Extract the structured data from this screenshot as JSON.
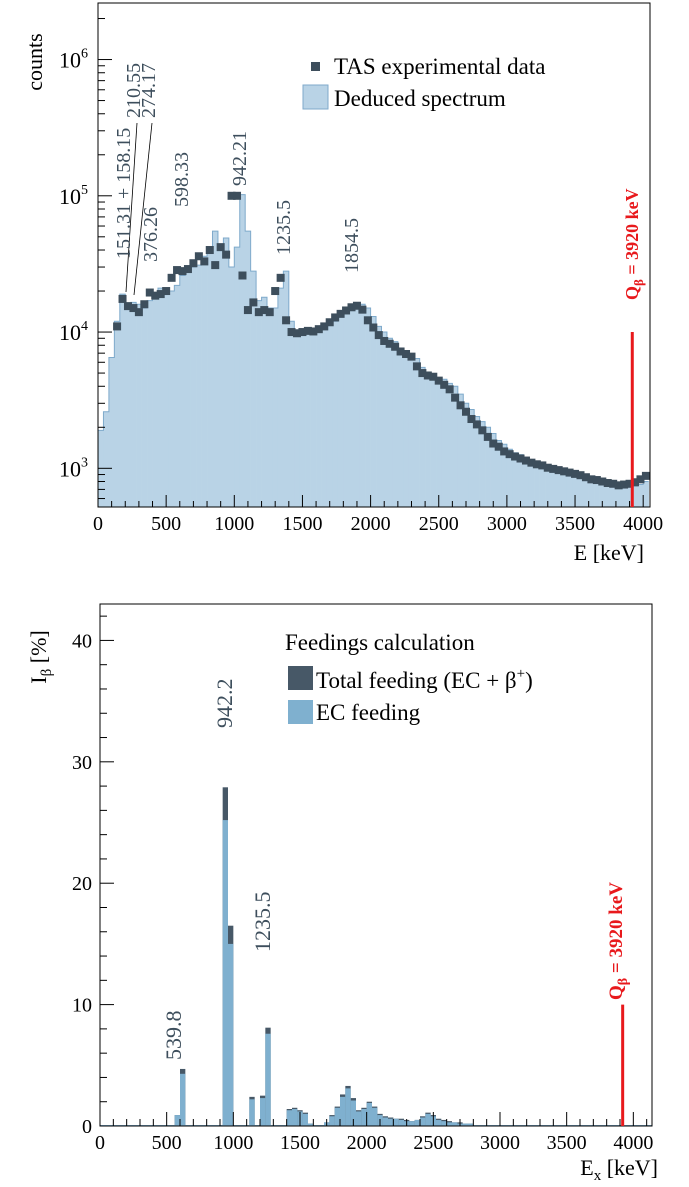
{
  "colors": {
    "deduced_fill": "#b9d3e6",
    "deduced_edge": "#7faacb",
    "tas_marker": "#3d4e5c",
    "total_feeding": "#475867",
    "ec_feeding": "#7fb0cf",
    "q_beta_line": "#e8191c",
    "annotation_text": "#3d4e5c"
  },
  "chart_data": [
    {
      "type": "area",
      "panel": "top",
      "ylabel": "counts",
      "xlabel": "E [keV]",
      "y_scale": "log",
      "xlim": [
        0,
        4050
      ],
      "ylim": [
        520,
        2600000
      ],
      "x_ticks": [
        0,
        500,
        1000,
        1500,
        2000,
        2500,
        3000,
        3500,
        4000
      ],
      "x_tick_labels": [
        "0",
        "500",
        "1000",
        "1500",
        "2000",
        "2500",
        "3000",
        "3500",
        "4000"
      ],
      "y_ticks": [
        1000,
        10000,
        100000,
        1000000
      ],
      "y_tick_labels": [
        {
          "base": "10",
          "exp": "3"
        },
        {
          "base": "10",
          "exp": "4"
        },
        {
          "base": "10",
          "exp": "5"
        },
        {
          "base": "10",
          "exp": "6"
        }
      ],
      "bin_width": 40,
      "legend": {
        "placement": "top-right",
        "entries": [
          {
            "label": "TAS experimental data",
            "style": "marker"
          },
          {
            "label": "Deduced spectrum",
            "style": "fill"
          }
        ]
      },
      "series": [
        {
          "name": "Deduced spectrum",
          "x": [
            0,
            40,
            80,
            120,
            160,
            200,
            240,
            280,
            320,
            360,
            400,
            440,
            480,
            520,
            560,
            600,
            640,
            680,
            720,
            760,
            800,
            840,
            880,
            920,
            960,
            1000,
            1040,
            1080,
            1120,
            1160,
            1200,
            1240,
            1280,
            1320,
            1360,
            1400,
            1440,
            1480,
            1520,
            1560,
            1600,
            1640,
            1680,
            1720,
            1760,
            1800,
            1840,
            1880,
            1920,
            1960,
            2000,
            2040,
            2080,
            2120,
            2160,
            2200,
            2240,
            2280,
            2320,
            2360,
            2400,
            2440,
            2480,
            2520,
            2560,
            2600,
            2640,
            2680,
            2720,
            2760,
            2800,
            2840,
            2880,
            2920,
            2960,
            3000,
            3040,
            3080,
            3120,
            3160,
            3200,
            3240,
            3280,
            3320,
            3360,
            3400,
            3440,
            3480,
            3520,
            3560,
            3600,
            3640,
            3680,
            3720,
            3760,
            3800,
            3840,
            3880,
            3920,
            3960,
            4000
          ],
          "values": [
            1900,
            2600,
            6500,
            12000,
            19000,
            15000,
            16500,
            16000,
            15000,
            17000,
            19000,
            21000,
            20000,
            20000,
            22000,
            26000,
            30000,
            30000,
            31000,
            36000,
            40000,
            55000,
            44000,
            49000,
            30000,
            42000,
            102000,
            55000,
            28000,
            17000,
            18000,
            15000,
            15000,
            21000,
            28000,
            12000,
            10000,
            9900,
            10500,
            10500,
            10600,
            11000,
            11500,
            12000,
            13000,
            14000,
            15000,
            15500,
            16000,
            15000,
            13000,
            11000,
            10000,
            9000,
            8500,
            7500,
            7000,
            6800,
            6400,
            5500,
            4900,
            4800,
            4600,
            4500,
            4200,
            4000,
            3500,
            3000,
            2700,
            2400,
            2200,
            2000,
            1800,
            1600,
            1500,
            1380,
            1300,
            1260,
            1200,
            1160,
            1120,
            1080,
            1060,
            1030,
            1000,
            990,
            960,
            940,
            920,
            900,
            870,
            850,
            830,
            800,
            790,
            770,
            760,
            750,
            740,
            760,
            800
          ]
        },
        {
          "name": "TAS experimental data",
          "x": [
            140,
            180,
            220,
            260,
            300,
            340,
            380,
            420,
            460,
            500,
            540,
            580,
            620,
            660,
            700,
            740,
            780,
            820,
            860,
            900,
            940,
            980,
            1020,
            1060,
            1100,
            1140,
            1180,
            1220,
            1260,
            1300,
            1340,
            1380,
            1420,
            1460,
            1500,
            1540,
            1580,
            1620,
            1660,
            1700,
            1740,
            1780,
            1820,
            1860,
            1900,
            1940,
            1980,
            2020,
            2060,
            2100,
            2140,
            2180,
            2220,
            2260,
            2300,
            2340,
            2380,
            2420,
            2460,
            2500,
            2540,
            2580,
            2620,
            2660,
            2700,
            2740,
            2780,
            2820,
            2860,
            2900,
            2940,
            2980,
            3020,
            3060,
            3100,
            3140,
            3180,
            3220,
            3260,
            3300,
            3340,
            3380,
            3420,
            3460,
            3500,
            3540,
            3580,
            3620,
            3660,
            3700,
            3740,
            3780,
            3820,
            3860,
            3900,
            3940,
            3980,
            4020
          ],
          "values": [
            11000,
            17500,
            15500,
            15000,
            14000,
            16000,
            19500,
            18500,
            19000,
            20000,
            25000,
            28500,
            28000,
            29000,
            32000,
            36000,
            33000,
            40000,
            31000,
            42000,
            37000,
            100000,
            100000,
            26000,
            14500,
            16500,
            14000,
            14500,
            14000,
            20000,
            25000,
            12200,
            10000,
            9800,
            10000,
            10200,
            10100,
            10500,
            11000,
            11800,
            12800,
            13600,
            14400,
            15200,
            15600,
            14600,
            12200,
            10800,
            9500,
            8600,
            8200,
            7800,
            7200,
            6900,
            6600,
            5600,
            5000,
            4800,
            4700,
            4400,
            4100,
            3800,
            3300,
            2900,
            2600,
            2300,
            2100,
            1900,
            1700,
            1520,
            1440,
            1330,
            1270,
            1220,
            1180,
            1140,
            1100,
            1070,
            1050,
            1010,
            990,
            970,
            950,
            930,
            910,
            890,
            860,
            830,
            820,
            800,
            780,
            770,
            750,
            760,
            770,
            790,
            830,
            880
          ]
        }
      ],
      "annotations": [
        {
          "text": "151.31 + 158.15",
          "x": 155
        },
        {
          "text": "210.55",
          "x": 210
        },
        {
          "text": "274.17",
          "x": 274
        },
        {
          "text": "376.26",
          "x": 376
        },
        {
          "text": "598.33",
          "x": 598
        },
        {
          "text": "942.21",
          "x": 942
        },
        {
          "text": "1235.5",
          "x": 1235
        },
        {
          "text": "1854.5",
          "x": 1854
        }
      ],
      "q_beta": {
        "value": 3920,
        "label_main": "Q",
        "label_sub": "β",
        "label_rest": " = 3920 keV",
        "line_top_value": 10000
      }
    },
    {
      "type": "bar",
      "panel": "bottom",
      "title": "Feedings calculation",
      "ylabel_main": "I",
      "ylabel_sub": "β",
      "ylabel_rest": " [%]",
      "xlabel_main": "E",
      "xlabel_sub": "x",
      "xlabel_rest": " [keV]",
      "xlim": [
        0,
        4140
      ],
      "ylim": [
        0,
        43
      ],
      "x_ticks": [
        0,
        500,
        1000,
        1500,
        2000,
        2500,
        3000,
        3500,
        4000
      ],
      "x_tick_labels": [
        "0",
        "500",
        "1000",
        "1500",
        "2000",
        "2500",
        "3000",
        "3500",
        "4000"
      ],
      "y_ticks": [
        0,
        10,
        20,
        30,
        40
      ],
      "y_tick_labels": [
        "0",
        "10",
        "20",
        "30",
        "40"
      ],
      "bin_width": 40,
      "legend": {
        "placement": "top-right",
        "entries": [
          {
            "label_main": "Total feeding (EC + β",
            "label_sup": "+",
            "label_end": ")"
          },
          {
            "label_main": "EC feeding",
            "label_sup": "",
            "label_end": ""
          }
        ]
      },
      "series": [
        {
          "name": "Total feeding (EC + β+)",
          "x": [
            560,
            600,
            920,
            960,
            1120,
            1200,
            1240,
            1400,
            1440,
            1480,
            1520,
            1560,
            1680,
            1720,
            1760,
            1800,
            1840,
            1880,
            1920,
            1960,
            2000,
            2040,
            2080,
            2120,
            2160,
            2200,
            2240,
            2280,
            2320,
            2360,
            2400,
            2440,
            2480,
            2520,
            2560,
            2600,
            2640,
            2680,
            2720,
            2760
          ],
          "values": [
            0.9,
            4.7,
            27.9,
            16.5,
            2.4,
            2.5,
            8.1,
            1.4,
            1.5,
            1.3,
            1.1,
            0.2,
            0.3,
            0.9,
            1.6,
            2.6,
            3.3,
            2.3,
            1.3,
            1.5,
            2.0,
            1.6,
            1.0,
            0.8,
            0.7,
            0.6,
            0.6,
            0.5,
            0.4,
            0.5,
            0.8,
            1.1,
            0.9,
            0.6,
            0.5,
            0.4,
            0.3,
            0.3,
            0.2,
            0.2
          ]
        },
        {
          "name": "EC feeding",
          "x": [
            560,
            600,
            920,
            960,
            1120,
            1200,
            1240,
            1400,
            1440,
            1480,
            1520,
            1560,
            1680,
            1720,
            1760,
            1800,
            1840,
            1880,
            1920,
            1960,
            2000,
            2040,
            2080,
            2120,
            2160,
            2200,
            2240,
            2280,
            2320,
            2360,
            2400,
            2440,
            2480,
            2520,
            2560,
            2600,
            2640,
            2680,
            2720,
            2760
          ],
          "values": [
            0.9,
            4.3,
            25.2,
            15.0,
            2.2,
            2.3,
            7.6,
            1.3,
            1.4,
            1.2,
            1.0,
            0.2,
            0.3,
            0.8,
            1.5,
            2.4,
            3.1,
            2.1,
            1.2,
            1.4,
            1.9,
            1.5,
            0.9,
            0.7,
            0.6,
            0.6,
            0.5,
            0.4,
            0.4,
            0.5,
            0.7,
            1.0,
            0.8,
            0.5,
            0.4,
            0.3,
            0.3,
            0.2,
            0.2,
            0.2
          ]
        }
      ],
      "annotations": [
        {
          "text": "539.8",
          "x": 600
        },
        {
          "text": "942.2",
          "x": 942
        },
        {
          "text": "1235.5",
          "x": 1250
        }
      ],
      "q_beta": {
        "value": 3920,
        "label_main": "Q",
        "label_sub": "β",
        "label_rest": " = 3920 keV",
        "line_top_value": 10
      }
    }
  ]
}
